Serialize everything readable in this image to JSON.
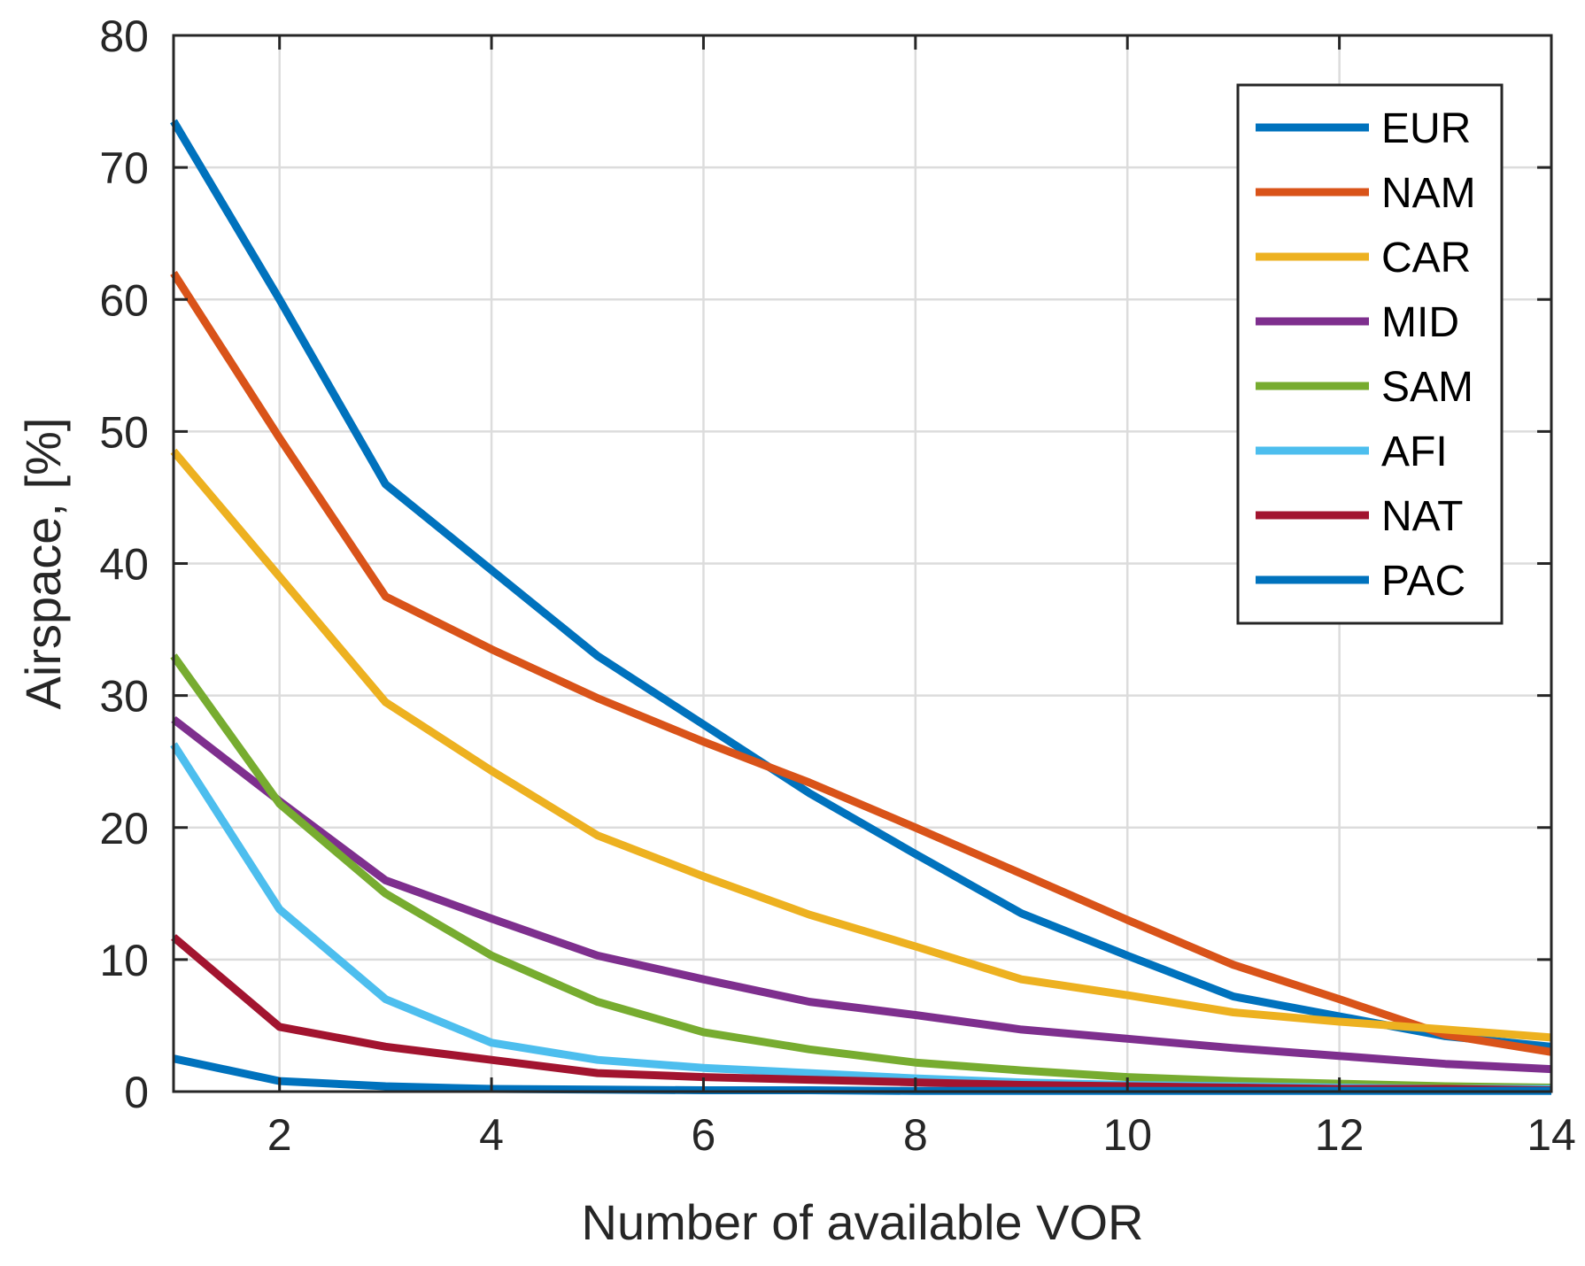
{
  "chart_data": {
    "type": "line",
    "xlabel": "Number of available VOR",
    "ylabel": "Airspace, [%]",
    "xlim": [
      1,
      14
    ],
    "ylim": [
      0,
      80
    ],
    "xticks": [
      2,
      4,
      6,
      8,
      10,
      12,
      14
    ],
    "yticks": [
      0,
      10,
      20,
      30,
      40,
      50,
      60,
      70,
      80
    ],
    "grid": true,
    "legend_position": "top-right",
    "x": [
      1,
      2,
      3,
      4,
      5,
      6,
      7,
      8,
      9,
      10,
      11,
      12,
      13,
      14
    ],
    "series": [
      {
        "name": "EUR",
        "color": "#0072BD",
        "values": [
          73.5,
          60,
          46,
          39.5,
          33,
          27.8,
          22.6,
          18,
          13.5,
          10.3,
          7.2,
          5.7,
          4.2,
          3.4
        ]
      },
      {
        "name": "NAM",
        "color": "#D95319",
        "values": [
          62,
          49.5,
          37.5,
          33.5,
          29.8,
          26.5,
          23.4,
          20,
          16.5,
          13,
          9.6,
          7,
          4.3,
          3
        ]
      },
      {
        "name": "CAR",
        "color": "#EDB120",
        "values": [
          48.5,
          39,
          29.5,
          24.3,
          19.4,
          16.3,
          13.4,
          11,
          8.5,
          7.3,
          6,
          5.3,
          4.7,
          4.1
        ]
      },
      {
        "name": "MID",
        "color": "#7E2F8E",
        "values": [
          28.2,
          22,
          16,
          13.1,
          10.3,
          8.5,
          6.8,
          5.8,
          4.7,
          4,
          3.3,
          2.7,
          2.1,
          1.7
        ]
      },
      {
        "name": "SAM",
        "color": "#77AC30",
        "values": [
          33,
          21.8,
          15,
          10.3,
          6.8,
          4.5,
          3.2,
          2.2,
          1.6,
          1.1,
          0.8,
          0.6,
          0.4,
          0.3
        ]
      },
      {
        "name": "AFI",
        "color": "#4DBEEE",
        "values": [
          26.3,
          13.8,
          7,
          3.7,
          2.4,
          1.8,
          1.4,
          1,
          0.7,
          0.5,
          0.4,
          0.3,
          0.2,
          0.2
        ]
      },
      {
        "name": "NAT",
        "color": "#A2142F",
        "values": [
          11.7,
          4.9,
          3.4,
          2.4,
          1.4,
          1.1,
          0.9,
          0.7,
          0.5,
          0.4,
          0.3,
          0.2,
          0.2,
          0.1
        ]
      },
      {
        "name": "PAC",
        "color": "#0072BD",
        "values": [
          2.5,
          0.8,
          0.4,
          0.2,
          0.15,
          0.1,
          0.1,
          0.05,
          0.05,
          0.05,
          0.05,
          0.05,
          0.05,
          0.05
        ]
      }
    ]
  }
}
